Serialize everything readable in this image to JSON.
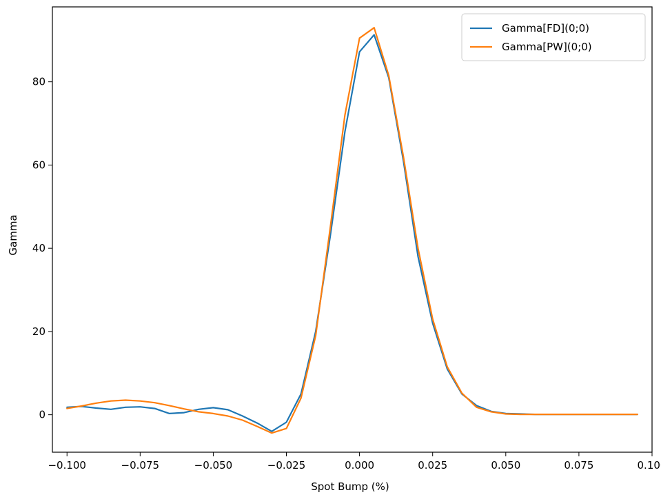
{
  "chart_data": {
    "type": "line",
    "title": "",
    "xlabel": "Spot Bump (%)",
    "ylabel": "Gamma",
    "xlim": [
      -0.105,
      0.1
    ],
    "ylim": [
      -9,
      98
    ],
    "xticks": [
      -0.1,
      -0.075,
      -0.05,
      -0.025,
      0.0,
      0.025,
      0.05,
      0.075,
      0.1
    ],
    "xtick_labels": [
      "−0.100",
      "−0.075",
      "−0.050",
      "−0.025",
      "0.000",
      "0.025",
      "0.050",
      "0.075",
      "0.100"
    ],
    "yticks": [
      0,
      20,
      40,
      60,
      80
    ],
    "ytick_labels": [
      "0",
      "20",
      "40",
      "60",
      "80"
    ],
    "grid": false,
    "legend_position": "top-right",
    "x": [
      -0.1,
      -0.095,
      -0.09,
      -0.085,
      -0.08,
      -0.075,
      -0.07,
      -0.065,
      -0.06,
      -0.055,
      -0.05,
      -0.045,
      -0.04,
      -0.035,
      -0.03,
      -0.025,
      -0.02,
      -0.015,
      -0.01,
      -0.005,
      0.0,
      0.005,
      0.01,
      0.015,
      0.02,
      0.025,
      0.03,
      0.035,
      0.04,
      0.045,
      0.05,
      0.055,
      0.06,
      0.065,
      0.07,
      0.075,
      0.08,
      0.085,
      0.09,
      0.095
    ],
    "series": [
      {
        "name": "Gamma[FD](0;0)",
        "color": "#1f77b4",
        "values": [
          1.8,
          2.0,
          1.6,
          1.3,
          1.8,
          1.9,
          1.5,
          0.3,
          0.5,
          1.3,
          1.7,
          1.2,
          -0.3,
          -2.0,
          -4.0,
          -1.8,
          5.0,
          20.0,
          43.0,
          68.0,
          87.2,
          91.3,
          81.0,
          61.0,
          38.0,
          22.0,
          11.0,
          5.0,
          2.2,
          0.8,
          0.3,
          0.2,
          0.1,
          0.1,
          0.1,
          0.1,
          0.1,
          0.1,
          0.1,
          0.1
        ]
      },
      {
        "name": "Gamma[PW](0;0)",
        "color": "#ff7f0e",
        "values": [
          1.5,
          2.1,
          2.8,
          3.3,
          3.5,
          3.3,
          2.9,
          2.2,
          1.4,
          0.7,
          0.3,
          -0.3,
          -1.3,
          -2.8,
          -4.4,
          -3.3,
          4.0,
          19.0,
          45.0,
          72.0,
          90.5,
          93.0,
          81.5,
          62.0,
          40.0,
          23.0,
          11.5,
          5.2,
          1.8,
          0.7,
          0.2,
          0.1,
          0.1,
          0.1,
          0.1,
          0.1,
          0.1,
          0.1,
          0.1,
          0.1
        ]
      }
    ]
  }
}
